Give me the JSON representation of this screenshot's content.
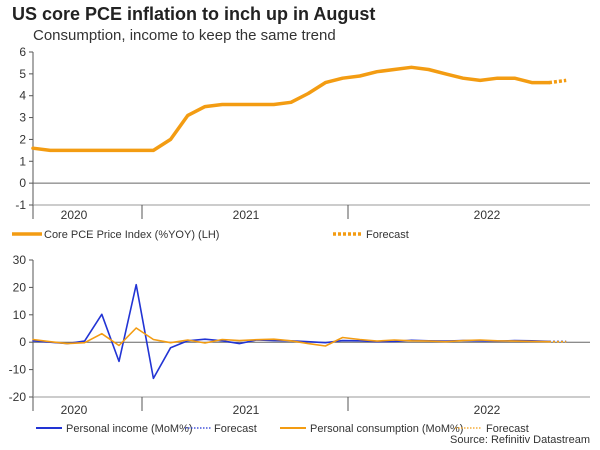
{
  "header": {
    "title": "US core PCE inflation to inch up in August",
    "subtitle": "Consumption, income to keep the same trend"
  },
  "source": "Source: Refinitiv Datastream",
  "colors": {
    "orange": "#F39C12",
    "blue": "#2234D4"
  },
  "chart_data": [
    {
      "type": "line",
      "xticks": [
        "2020",
        "2021",
        "2022"
      ],
      "ylim": [
        -1,
        6
      ],
      "yticks": [
        "-1",
        "0",
        "1",
        "2",
        "3",
        "4",
        "5",
        "6"
      ],
      "series": [
        {
          "name": "Core PCE Price Index (%YOY) (LH)",
          "style": "solid",
          "color": "#F39C12",
          "x": [
            "2020-01",
            "2020-02",
            "2020-03",
            "2020-04",
            "2020-05",
            "2020-06",
            "2020-07",
            "2020-08",
            "2020-09",
            "2020-10",
            "2020-11",
            "2020-12",
            "2021-01",
            "2021-02",
            "2021-03",
            "2021-04",
            "2021-05",
            "2021-06",
            "2021-07",
            "2021-08",
            "2021-09",
            "2021-10",
            "2021-11",
            "2021-12",
            "2022-01",
            "2022-02",
            "2022-03",
            "2022-04",
            "2022-05",
            "2022-06",
            "2022-07"
          ],
          "values": [
            1.6,
            1.5,
            1.5,
            1.5,
            1.5,
            1.5,
            1.5,
            1.5,
            2.0,
            3.1,
            3.5,
            3.6,
            3.6,
            3.6,
            3.6,
            3.7,
            4.1,
            4.6,
            4.8,
            4.9,
            5.1,
            5.2,
            5.3,
            5.2,
            5.0,
            4.8,
            4.7,
            4.8,
            4.8,
            4.6,
            4.6
          ]
        },
        {
          "name": "Forecast",
          "style": "dotted",
          "color": "#F39C12",
          "x": [
            "2022-07",
            "2022-08"
          ],
          "values": [
            4.6,
            4.7
          ]
        }
      ]
    },
    {
      "type": "line",
      "xticks": [
        "2020",
        "2021",
        "2022"
      ],
      "ylim": [
        -20,
        30
      ],
      "yticks": [
        "-20",
        "-10",
        "0",
        "10",
        "20",
        "30"
      ],
      "series": [
        {
          "name": "Personal income (MoM%)",
          "style": "solid",
          "color": "#2234D4",
          "x": [
            "2020-01",
            "2020-02",
            "2020-03",
            "2020-04",
            "2020-05",
            "2020-06",
            "2020-07",
            "2020-08",
            "2020-09",
            "2020-10",
            "2020-11",
            "2020-12",
            "2021-01",
            "2021-02",
            "2021-03",
            "2021-04",
            "2021-05",
            "2021-06",
            "2021-07",
            "2021-08",
            "2021-09",
            "2021-10",
            "2021-11",
            "2021-12",
            "2022-01",
            "2022-02",
            "2022-03",
            "2022-04",
            "2022-05",
            "2022-06",
            "2022-07"
          ],
          "values": [
            0.5,
            0.0,
            -0.5,
            0.4,
            10.2,
            -7.0,
            21.0,
            -13.2,
            -2.0,
            0.5,
            1.1,
            0.5,
            -0.5,
            0.8,
            0.6,
            0.5,
            0.2,
            -0.2,
            0.6,
            0.5,
            0.2,
            0.3,
            0.7,
            0.5,
            0.4,
            0.6,
            0.5,
            0.4,
            0.6,
            0.5,
            0.3
          ]
        },
        {
          "name": "Forecast",
          "style": "dotted",
          "color": "#2234D4",
          "x": [
            "2022-07",
            "2022-08"
          ],
          "values": [
            0.3,
            0.3
          ]
        },
        {
          "name": "Personal consumption (MoM%)",
          "style": "solid",
          "color": "#F39C12",
          "x": [
            "2020-01",
            "2020-02",
            "2020-03",
            "2020-04",
            "2020-05",
            "2020-06",
            "2020-07",
            "2020-08",
            "2020-09",
            "2020-10",
            "2020-11",
            "2020-12",
            "2021-01",
            "2021-02",
            "2021-03",
            "2021-04",
            "2021-05",
            "2021-06",
            "2021-07",
            "2021-08",
            "2021-09",
            "2021-10",
            "2021-11",
            "2021-12",
            "2022-01",
            "2022-02",
            "2022-03",
            "2022-04",
            "2022-05",
            "2022-06",
            "2022-07"
          ],
          "values": [
            1.0,
            0.2,
            -0.5,
            -0.2,
            3.1,
            -1.2,
            5.2,
            1.0,
            -0.2,
            0.8,
            -0.3,
            1.0,
            0.6,
            0.9,
            1.1,
            0.5,
            -0.5,
            -1.4,
            1.7,
            1.0,
            0.4,
            0.8,
            0.5,
            0.4,
            0.2,
            0.6,
            0.8,
            0.5,
            0.4,
            0.3,
            0.2
          ]
        },
        {
          "name": "Forecast",
          "style": "dotted",
          "color": "#F39C12",
          "x": [
            "2022-07",
            "2022-08"
          ],
          "values": [
            0.2,
            0.2
          ]
        }
      ]
    }
  ]
}
